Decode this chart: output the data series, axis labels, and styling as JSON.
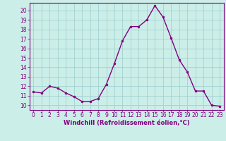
{
  "x": [
    0,
    1,
    2,
    3,
    4,
    5,
    6,
    7,
    8,
    9,
    10,
    11,
    12,
    13,
    14,
    15,
    16,
    17,
    18,
    19,
    20,
    21,
    22,
    23
  ],
  "y": [
    11.4,
    11.3,
    12.0,
    11.8,
    11.3,
    10.9,
    10.4,
    10.4,
    10.7,
    12.2,
    14.4,
    16.8,
    18.3,
    18.3,
    19.0,
    20.5,
    19.3,
    17.1,
    14.8,
    13.5,
    11.5,
    11.5,
    10.0,
    9.9
  ],
  "line_color": "#800080",
  "marker": "o",
  "marker_size": 2.0,
  "line_width": 1.0,
  "bg_color": "#cceee8",
  "grid_color": "#99cccc",
  "xlabel": "Windchill (Refroidissement éolien,°C)",
  "xlabel_color": "#800080",
  "tick_color": "#800080",
  "spine_color": "#800080",
  "xlim": [
    -0.5,
    23.5
  ],
  "ylim": [
    9.5,
    20.8
  ],
  "yticks": [
    10,
    11,
    12,
    13,
    14,
    15,
    16,
    17,
    18,
    19,
    20
  ],
  "xticks": [
    0,
    1,
    2,
    3,
    4,
    5,
    6,
    7,
    8,
    9,
    10,
    11,
    12,
    13,
    14,
    15,
    16,
    17,
    18,
    19,
    20,
    21,
    22,
    23
  ],
  "tick_fontsize": 5.5,
  "xlabel_fontsize": 6.0,
  "xlabel_fontweight": "bold"
}
